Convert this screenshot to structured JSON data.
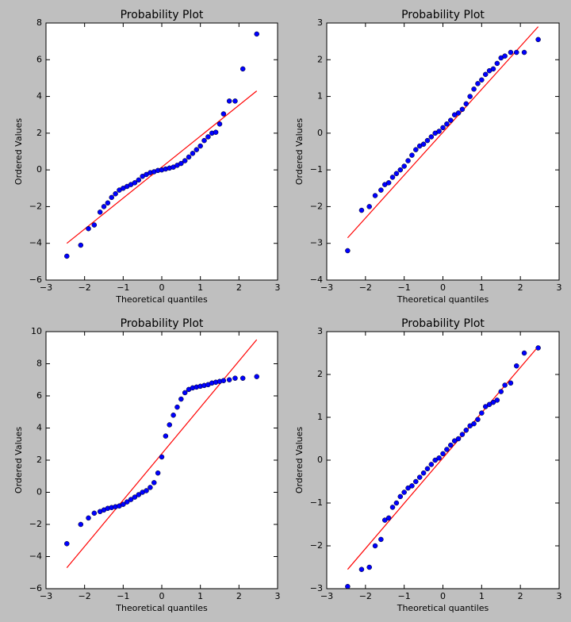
{
  "chart_data": [
    {
      "type": "scatter",
      "title": "Probability Plot",
      "xlabel": "Theoretical quantiles",
      "ylabel": "Ordered Values",
      "xlim": [
        -3,
        3
      ],
      "ylim": [
        -6,
        8
      ],
      "xticks": [
        {
          "value": -3,
          "label": "−3"
        },
        {
          "value": -2,
          "label": "−2"
        },
        {
          "value": -1,
          "label": "−1"
        },
        0,
        1,
        2,
        3
      ],
      "yticks": [
        {
          "value": -6,
          "label": "−6"
        },
        {
          "value": -4,
          "label": "−4"
        },
        {
          "value": -2,
          "label": "−2"
        },
        0,
        2,
        4,
        6,
        8
      ],
      "points": {
        "color": "#0000ff",
        "x": [
          -2.46,
          -2.1,
          -1.9,
          -1.75,
          -1.6,
          -1.5,
          -1.4,
          -1.3,
          -1.2,
          -1.1,
          -1.0,
          -0.9,
          -0.8,
          -0.7,
          -0.6,
          -0.5,
          -0.4,
          -0.3,
          -0.2,
          -0.1,
          0,
          0.1,
          0.2,
          0.3,
          0.4,
          0.5,
          0.6,
          0.7,
          0.8,
          0.9,
          1.0,
          1.1,
          1.2,
          1.3,
          1.4,
          1.5,
          1.6,
          1.75,
          1.9,
          2.1,
          2.46
        ],
        "values": [
          -4.7,
          -4.1,
          -3.2,
          -3.0,
          -2.3,
          -2.0,
          -1.8,
          -1.5,
          -1.3,
          -1.1,
          -1.0,
          -0.9,
          -0.8,
          -0.7,
          -0.55,
          -0.35,
          -0.25,
          -0.15,
          -0.1,
          -0.03,
          0,
          0.05,
          0.1,
          0.15,
          0.25,
          0.35,
          0.5,
          0.7,
          0.9,
          1.1,
          1.3,
          1.6,
          1.8,
          2.0,
          2.05,
          2.5,
          3.05,
          3.75,
          3.75,
          5.5,
          7.4
        ]
      },
      "fit_line": {
        "color": "#ff0000",
        "x": [
          -2.46,
          2.46
        ],
        "values": [
          -4.0,
          4.3
        ]
      }
    },
    {
      "type": "scatter",
      "title": "Probability Plot",
      "xlabel": "Theoretical quantiles",
      "ylabel": "Ordered Values",
      "xlim": [
        -3,
        3
      ],
      "ylim": [
        -4,
        3
      ],
      "xticks": [
        {
          "value": -3,
          "label": "−3"
        },
        {
          "value": -2,
          "label": "−2"
        },
        {
          "value": -1,
          "label": "−1"
        },
        0,
        1,
        2,
        3
      ],
      "yticks": [
        {
          "value": -4,
          "label": "−4"
        },
        {
          "value": -3,
          "label": "−3"
        },
        {
          "value": -2,
          "label": "−2"
        },
        {
          "value": -1,
          "label": "−1"
        },
        0,
        1,
        2,
        3
      ],
      "points": {
        "color": "#0000ff",
        "x": [
          -2.46,
          -2.1,
          -1.9,
          -1.75,
          -1.6,
          -1.5,
          -1.4,
          -1.3,
          -1.2,
          -1.1,
          -1.0,
          -0.9,
          -0.8,
          -0.7,
          -0.6,
          -0.5,
          -0.4,
          -0.3,
          -0.2,
          -0.1,
          0,
          0.1,
          0.2,
          0.3,
          0.4,
          0.5,
          0.6,
          0.7,
          0.8,
          0.9,
          1.0,
          1.1,
          1.2,
          1.3,
          1.4,
          1.5,
          1.6,
          1.75,
          1.9,
          2.1,
          2.46
        ],
        "values": [
          -3.2,
          -2.1,
          -2.0,
          -1.7,
          -1.55,
          -1.4,
          -1.35,
          -1.2,
          -1.1,
          -1.0,
          -0.9,
          -0.75,
          -0.6,
          -0.45,
          -0.35,
          -0.3,
          -0.2,
          -0.1,
          0,
          0.05,
          0.15,
          0.25,
          0.35,
          0.5,
          0.55,
          0.65,
          0.8,
          1.0,
          1.2,
          1.35,
          1.45,
          1.6,
          1.7,
          1.75,
          1.9,
          2.05,
          2.1,
          2.2,
          2.2,
          2.2,
          2.55
        ]
      },
      "fit_line": {
        "color": "#ff0000",
        "x": [
          -2.46,
          2.46
        ],
        "values": [
          -2.85,
          2.9
        ]
      }
    },
    {
      "type": "scatter",
      "title": "Probability Plot",
      "xlabel": "Theoretical quantiles",
      "ylabel": "Ordered Values",
      "xlim": [
        -3,
        3
      ],
      "ylim": [
        -6,
        10
      ],
      "xticks": [
        {
          "value": -3,
          "label": "−3"
        },
        {
          "value": -2,
          "label": "−2"
        },
        {
          "value": -1,
          "label": "−1"
        },
        0,
        1,
        2,
        3
      ],
      "yticks": [
        {
          "value": -6,
          "label": "−6"
        },
        {
          "value": -4,
          "label": "−4"
        },
        {
          "value": -2,
          "label": "−2"
        },
        0,
        2,
        4,
        6,
        8,
        10
      ],
      "points": {
        "color": "#0000ff",
        "x": [
          -2.46,
          -2.1,
          -1.9,
          -1.75,
          -1.6,
          -1.5,
          -1.4,
          -1.3,
          -1.2,
          -1.1,
          -1.0,
          -0.9,
          -0.8,
          -0.7,
          -0.6,
          -0.5,
          -0.4,
          -0.3,
          -0.2,
          -0.1,
          0,
          0.1,
          0.2,
          0.3,
          0.4,
          0.5,
          0.6,
          0.7,
          0.8,
          0.9,
          1.0,
          1.1,
          1.2,
          1.3,
          1.4,
          1.5,
          1.6,
          1.75,
          1.9,
          2.1,
          2.46
        ],
        "values": [
          -3.2,
          -2.0,
          -1.6,
          -1.3,
          -1.2,
          -1.1,
          -1.0,
          -0.95,
          -0.9,
          -0.85,
          -0.75,
          -0.6,
          -0.45,
          -0.3,
          -0.15,
          0,
          0.1,
          0.3,
          0.6,
          1.2,
          2.2,
          3.5,
          4.2,
          4.8,
          5.3,
          5.8,
          6.2,
          6.4,
          6.5,
          6.55,
          6.6,
          6.65,
          6.7,
          6.8,
          6.85,
          6.9,
          6.95,
          7.0,
          7.1,
          7.1,
          7.2
        ]
      },
      "fit_line": {
        "color": "#ff0000",
        "x": [
          -2.46,
          2.46
        ],
        "values": [
          -4.7,
          9.5
        ]
      }
    },
    {
      "type": "scatter",
      "title": "Probability Plot",
      "xlabel": "Theoretical quantiles",
      "ylabel": "Ordered Values",
      "xlim": [
        -3,
        3
      ],
      "ylim": [
        -3,
        3
      ],
      "xticks": [
        {
          "value": -3,
          "label": "−3"
        },
        {
          "value": -2,
          "label": "−2"
        },
        {
          "value": -1,
          "label": "−1"
        },
        0,
        1,
        2,
        3
      ],
      "yticks": [
        {
          "value": -3,
          "label": "−3"
        },
        {
          "value": -2,
          "label": "−2"
        },
        {
          "value": -1,
          "label": "−1"
        },
        0,
        1,
        2,
        3
      ],
      "points": {
        "color": "#0000ff",
        "x": [
          -2.46,
          -2.1,
          -1.9,
          -1.75,
          -1.6,
          -1.5,
          -1.4,
          -1.3,
          -1.2,
          -1.1,
          -1.0,
          -0.9,
          -0.8,
          -0.7,
          -0.6,
          -0.5,
          -0.4,
          -0.3,
          -0.2,
          -0.1,
          0,
          0.1,
          0.2,
          0.3,
          0.4,
          0.5,
          0.6,
          0.7,
          0.8,
          0.9,
          1.0,
          1.1,
          1.2,
          1.3,
          1.4,
          1.5,
          1.6,
          1.75,
          1.9,
          2.1,
          2.46
        ],
        "values": [
          -2.95,
          -2.55,
          -2.5,
          -2.0,
          -1.85,
          -1.4,
          -1.35,
          -1.1,
          -1.0,
          -0.85,
          -0.75,
          -0.65,
          -0.6,
          -0.5,
          -0.4,
          -0.3,
          -0.2,
          -0.1,
          0,
          0.05,
          0.15,
          0.25,
          0.35,
          0.45,
          0.5,
          0.6,
          0.7,
          0.8,
          0.85,
          0.95,
          1.1,
          1.25,
          1.3,
          1.35,
          1.4,
          1.6,
          1.75,
          1.8,
          2.2,
          2.5,
          2.62
        ]
      },
      "fit_line": {
        "color": "#ff0000",
        "x": [
          -2.46,
          2.46
        ],
        "values": [
          -2.55,
          2.65
        ]
      }
    }
  ]
}
